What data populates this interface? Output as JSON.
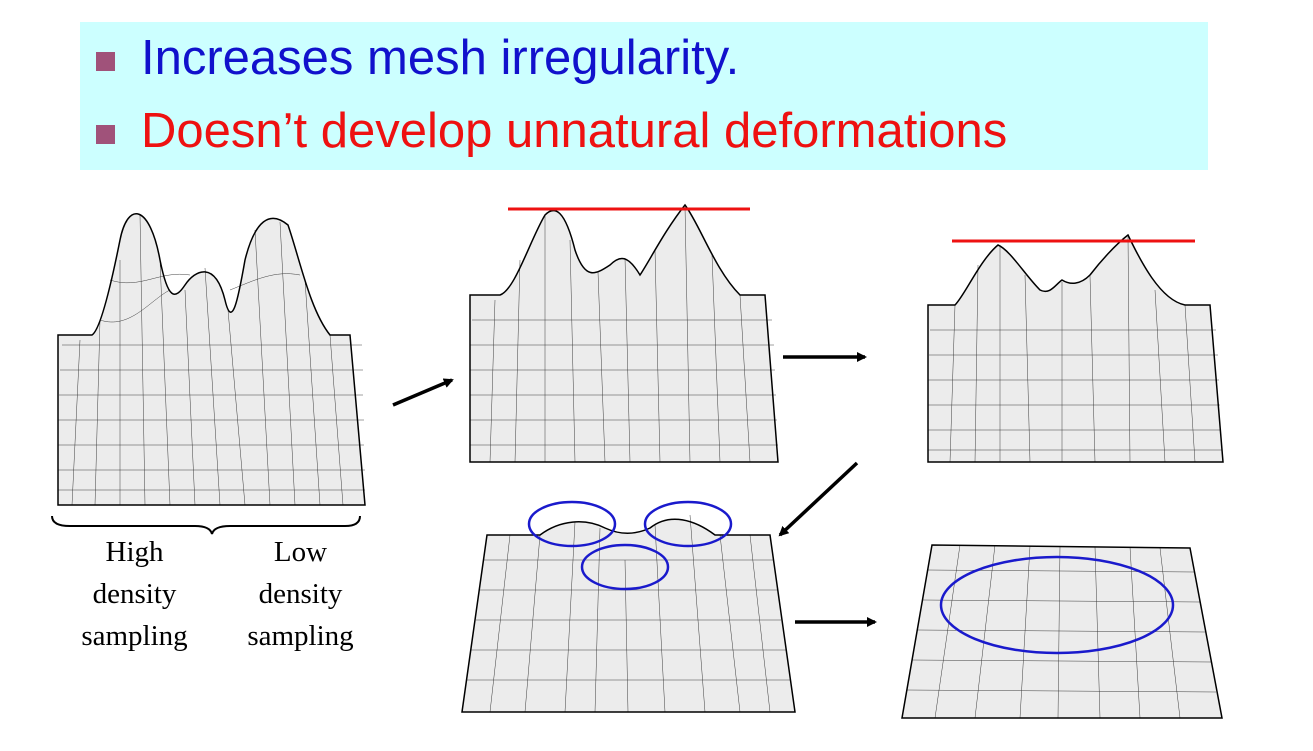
{
  "banner": {
    "bullets": [
      {
        "text": "Increases mesh irregularity.",
        "color": "#1111cc"
      },
      {
        "text": "Doesn’t  develop unnatural deformations",
        "color": "#ee1111"
      }
    ],
    "background": "#ccffff",
    "bullet_color": "#a0527a"
  },
  "captions": {
    "high": [
      "High",
      "density",
      "sampling"
    ],
    "low": [
      "Low",
      "density",
      "sampling"
    ]
  },
  "panels": [
    {
      "id": "mesh-original",
      "peaks": 3,
      "highlight": "none"
    },
    {
      "id": "mesh-step-1",
      "peaks": 3,
      "highlight": "red-max-line"
    },
    {
      "id": "mesh-step-2",
      "peaks": 3,
      "highlight": "red-max-line"
    },
    {
      "id": "mesh-step-3",
      "peaks": 3,
      "highlight": "blue-ellipses"
    },
    {
      "id": "mesh-step-4",
      "peaks": 0,
      "highlight": "blue-ellipse"
    }
  ],
  "colors": {
    "mesh": "#000000",
    "red_line": "#ee1111",
    "ellipse": "#1a1acc",
    "arrow": "#000000"
  }
}
